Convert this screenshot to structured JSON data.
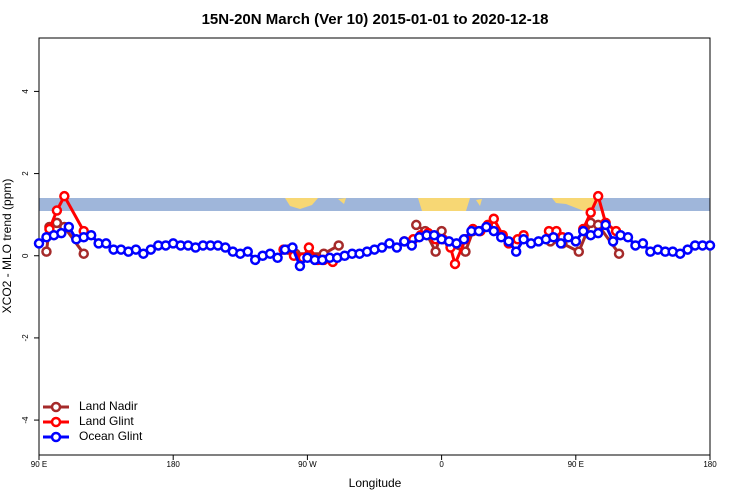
{
  "chart_data": {
    "type": "line",
    "title": "15N-20N March (Ver 10)   2015-01-01 to 2020-12-18",
    "x_label": "Longitude",
    "y_label": "XCO2 - MLO trend (ppm)",
    "xlim": [
      90,
      540
    ],
    "xticks": [
      {
        "value": 90,
        "label": "90 E"
      },
      180,
      {
        "value": 270,
        "label": "90 W"
      },
      {
        "value": 360,
        "label": "0"
      },
      {
        "value": 450,
        "label": "90 E"
      },
      {
        "value": 540,
        "label": "180"
      }
    ],
    "ylim": [
      -4.85,
      5.3
    ],
    "yticks": [
      -4,
      -2,
      0,
      2,
      4
    ],
    "legend": "bottomleft",
    "series": [
      {
        "name": "Land Nadir",
        "color": "#a52a2a",
        "x": [
          95,
          97,
          102,
          107,
          120,
          200,
          257,
          262,
          281,
          291,
          320,
          343,
          349,
          356,
          360,
          366,
          376,
          381,
          420,
          433,
          441,
          452,
          460,
          465,
          479
        ],
        "values": [
          0.1,
          0.7,
          0.8,
          0.7,
          0.05,
          null,
          0.15,
          0.05,
          0.05,
          0.25,
          null,
          0.75,
          0.6,
          0.1,
          0.6,
          0.25,
          0.1,
          0.6,
          null,
          0.35,
          0.3,
          0.1,
          0.8,
          0.75,
          0.05
        ]
      },
      {
        "name": "Land Glint",
        "color": "#ff0000",
        "x": [
          97,
          102,
          107,
          120,
          200,
          254,
          261,
          267,
          271,
          277,
          281,
          287,
          300,
          335,
          341,
          346,
          351,
          356,
          361,
          366,
          369,
          376,
          381,
          386,
          391,
          395,
          401,
          405,
          411,
          415,
          425,
          432,
          437,
          441,
          448,
          455,
          460,
          465,
          470,
          477
        ],
        "values": [
          0.65,
          1.1,
          1.45,
          0.6,
          null,
          0.15,
          0.0,
          -0.05,
          0.2,
          -0.1,
          -0.1,
          -0.15,
          null,
          0.35,
          0.4,
          0.5,
          0.55,
          0.4,
          0.4,
          0.2,
          -0.2,
          0.4,
          0.65,
          0.6,
          0.75,
          0.9,
          0.5,
          0.3,
          0.4,
          0.5,
          null,
          0.6,
          0.6,
          0.45,
          null,
          0.65,
          1.05,
          1.45,
          0.8,
          0.6
        ]
      },
      {
        "name": "Ocean Glint",
        "color": "#0000ff",
        "x": [
          90,
          95,
          100,
          105,
          110,
          115,
          120,
          125,
          130,
          135,
          140,
          145,
          150,
          155,
          160,
          165,
          170,
          175,
          180,
          185,
          190,
          195,
          200,
          205,
          210,
          215,
          220,
          225,
          230,
          235,
          240,
          245,
          250,
          255,
          260,
          265,
          270,
          275,
          280,
          285,
          290,
          295,
          300,
          305,
          310,
          315,
          320,
          325,
          330,
          335,
          340,
          345,
          350,
          355,
          360,
          365,
          370,
          375,
          380,
          385,
          390,
          395,
          400,
          405,
          410,
          415,
          420,
          425,
          430,
          435,
          440,
          445,
          450,
          455,
          460,
          465,
          470,
          475,
          480,
          485,
          490,
          495,
          500,
          505,
          510,
          515,
          520,
          525,
          530,
          535,
          540
        ],
        "values": [
          0.3,
          0.45,
          0.5,
          0.55,
          0.7,
          0.4,
          0.45,
          0.5,
          0.3,
          0.3,
          0.15,
          0.15,
          0.1,
          0.15,
          0.05,
          0.15,
          0.25,
          0.25,
          0.3,
          0.25,
          0.25,
          0.2,
          0.25,
          0.25,
          0.25,
          0.2,
          0.1,
          0.05,
          0.1,
          -0.1,
          0,
          0.05,
          -0.05,
          0.15,
          0.2,
          -0.25,
          -0.05,
          -0.1,
          -0.1,
          -0.05,
          -0.05,
          0,
          0.05,
          0.05,
          0.1,
          0.15,
          0.2,
          0.3,
          0.2,
          0.35,
          0.25,
          0.45,
          0.5,
          0.5,
          0.4,
          0.35,
          0.3,
          0.4,
          0.6,
          0.6,
          0.7,
          0.6,
          0.45,
          0.35,
          0.1,
          0.4,
          0.3,
          0.35,
          0.4,
          0.45,
          0.3,
          0.45,
          0.35,
          0.6,
          0.5,
          0.55,
          0.75,
          0.35,
          0.5,
          0.45,
          0.25,
          0.3,
          0.1,
          0.15,
          0.1,
          0.1,
          0.05,
          0.15,
          0.25,
          0.25,
          0.25
        ]
      }
    ]
  }
}
